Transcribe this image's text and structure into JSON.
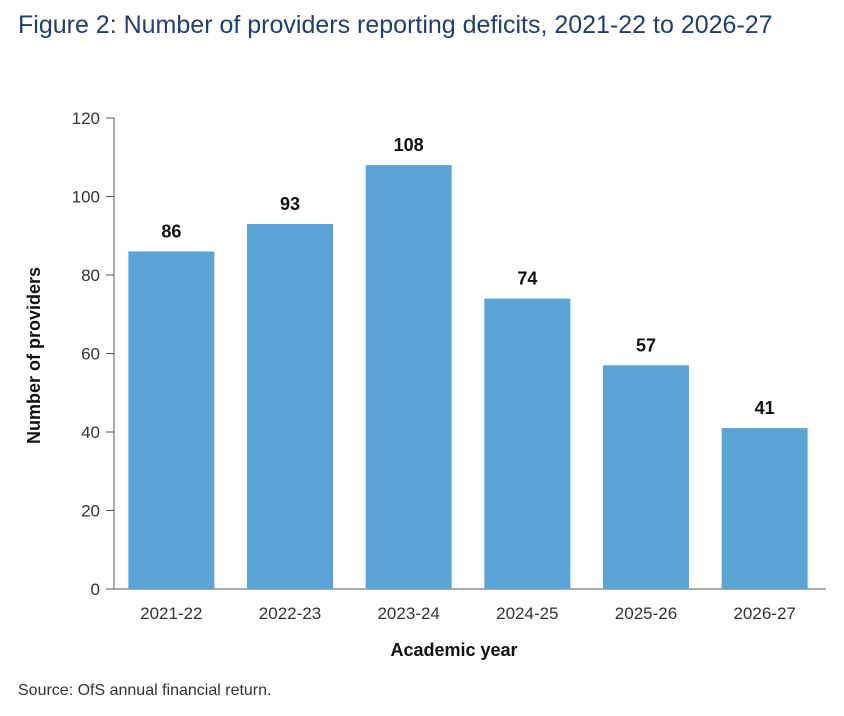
{
  "title": "Figure 2: Number of providers reporting deficits, 2021-22 to 2026-27",
  "source": "Source: OfS annual financial return.",
  "colors": {
    "bar": "#5ba4d6",
    "axis": "#555555",
    "title": "#1f3f6e"
  },
  "chart_data": {
    "type": "bar",
    "categories": [
      "2021-22",
      "2022-23",
      "2023-24",
      "2024-25",
      "2025-26",
      "2026-27"
    ],
    "values": [
      86,
      93,
      108,
      74,
      57,
      41
    ],
    "data_labels": [
      "86",
      "93",
      "108",
      "74",
      "57",
      "41"
    ],
    "xlabel": "Academic year",
    "ylabel": "Number of providers",
    "ylim": [
      0,
      120
    ],
    "yticks": [
      0,
      20,
      40,
      60,
      80,
      100,
      120
    ],
    "grid": false,
    "legend": "none"
  }
}
